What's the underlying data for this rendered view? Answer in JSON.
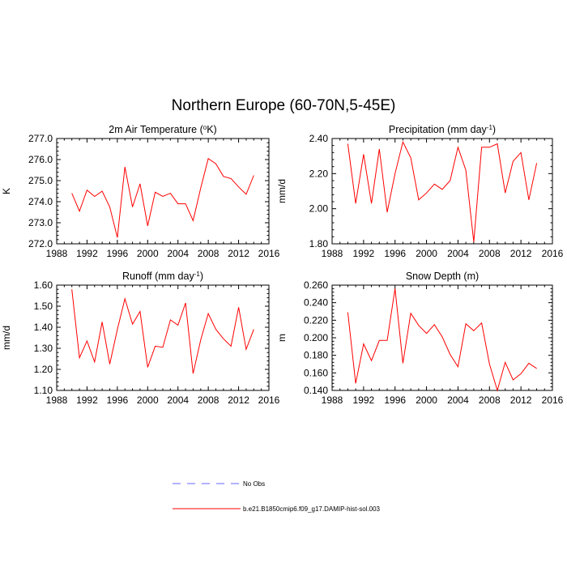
{
  "title": "Northern Europe (60-70N,5-45E)",
  "colors": {
    "model": "#ff0000",
    "obs": "#6666ff",
    "axis": "#000000"
  },
  "legend": {
    "obs_label": "No Obs",
    "model_label": "b.e21.B1850cmip6.f09_g17.DAMIP-hist-sol.003"
  },
  "chart_data": [
    {
      "type": "line",
      "title": "2m Air Temperature (°K)",
      "title_text": "2m Air Temperature (",
      "title_sup": "o",
      "title_after": "K)",
      "ylabel": "K",
      "xlim": [
        1988,
        2016
      ],
      "ylim": [
        272.0,
        277.0
      ],
      "xticks": [
        1988,
        1992,
        1996,
        2000,
        2004,
        2008,
        2012,
        2016
      ],
      "yticks": [
        "272.0",
        "273.0",
        "274.0",
        "275.0",
        "276.0",
        "277.0"
      ],
      "x": [
        1990,
        1991,
        1992,
        1993,
        1994,
        1995,
        1996,
        1997,
        1998,
        1999,
        2000,
        2001,
        2002,
        2003,
        2004,
        2005,
        2006,
        2007,
        2008,
        2009,
        2010,
        2011,
        2012,
        2013,
        2014
      ],
      "series": [
        {
          "name": "b.e21.B1850cmip6.f09_g17.DAMIP-hist-sol.003",
          "values": [
            274.4,
            273.55,
            274.55,
            274.25,
            274.5,
            273.75,
            272.3,
            275.65,
            273.75,
            274.85,
            272.85,
            274.45,
            274.25,
            274.4,
            273.9,
            273.9,
            273.1,
            274.65,
            276.05,
            275.8,
            275.2,
            275.1,
            274.7,
            274.35,
            275.25
          ]
        }
      ]
    },
    {
      "type": "line",
      "title": "Precipitation (mm day-1)",
      "title_text": "Precipitation (mm day",
      "title_sup": "-1",
      "title_after": ")",
      "ylabel": "mm/d",
      "xlim": [
        1988,
        2016
      ],
      "ylim": [
        1.8,
        2.4
      ],
      "xticks": [
        1988,
        1992,
        1996,
        2000,
        2004,
        2008,
        2012,
        2016
      ],
      "yticks": [
        "1.80",
        "2.00",
        "2.20",
        "2.40"
      ],
      "x": [
        1990,
        1991,
        1992,
        1993,
        1994,
        1995,
        1996,
        1997,
        1998,
        1999,
        2000,
        2001,
        2002,
        2003,
        2004,
        2005,
        2006,
        2007,
        2008,
        2009,
        2010,
        2011,
        2012,
        2013,
        2014
      ],
      "series": [
        {
          "name": "b.e21.B1850cmip6.f09_g17.DAMIP-hist-sol.003",
          "values": [
            2.37,
            2.03,
            2.31,
            2.03,
            2.34,
            1.98,
            2.2,
            2.38,
            2.29,
            2.05,
            2.09,
            2.14,
            2.11,
            2.16,
            2.35,
            2.22,
            1.81,
            2.35,
            2.35,
            2.37,
            2.09,
            2.27,
            2.32,
            2.05,
            2.26
          ]
        }
      ]
    },
    {
      "type": "line",
      "title": "Runoff (mm day-1)",
      "title_text": "Runoff (mm day",
      "title_sup": "-1",
      "title_after": ")",
      "ylabel": "mm/d",
      "xlim": [
        1988,
        2016
      ],
      "ylim": [
        1.1,
        1.6
      ],
      "xticks": [
        1988,
        1992,
        1996,
        2000,
        2004,
        2008,
        2012,
        2016
      ],
      "yticks": [
        "1.10",
        "1.20",
        "1.30",
        "1.40",
        "1.50",
        "1.60"
      ],
      "x": [
        1990,
        1991,
        1992,
        1993,
        1994,
        1995,
        1996,
        1997,
        1998,
        1999,
        2000,
        2001,
        2002,
        2003,
        2004,
        2005,
        2006,
        2007,
        2008,
        2009,
        2010,
        2011,
        2012,
        2013,
        2014
      ],
      "series": [
        {
          "name": "b.e21.B1850cmip6.f09_g17.DAMIP-hist-sol.003",
          "values": [
            1.58,
            1.255,
            1.335,
            1.235,
            1.425,
            1.225,
            1.39,
            1.535,
            1.415,
            1.475,
            1.21,
            1.31,
            1.305,
            1.435,
            1.41,
            1.515,
            1.18,
            1.34,
            1.465,
            1.39,
            1.345,
            1.31,
            1.495,
            1.295,
            1.39
          ]
        }
      ]
    },
    {
      "type": "line",
      "title": "Snow Depth (m)",
      "title_text": "Snow Depth (m)",
      "title_sup": "",
      "title_after": "",
      "ylabel": "m",
      "xlim": [
        1988,
        2016
      ],
      "ylim": [
        0.14,
        0.26
      ],
      "xticks": [
        1988,
        1992,
        1996,
        2000,
        2004,
        2008,
        2012,
        2016
      ],
      "yticks": [
        "0.140",
        "0.160",
        "0.180",
        "0.200",
        "0.220",
        "0.240",
        "0.260"
      ],
      "x": [
        1990,
        1991,
        1992,
        1993,
        1994,
        1995,
        1996,
        1997,
        1998,
        1999,
        2000,
        2001,
        2002,
        2003,
        2004,
        2005,
        2006,
        2007,
        2008,
        2009,
        2010,
        2011,
        2012,
        2013,
        2014
      ],
      "series": [
        {
          "name": "b.e21.B1850cmip6.f09_g17.DAMIP-hist-sol.003",
          "values": [
            0.229,
            0.148,
            0.193,
            0.174,
            0.197,
            0.197,
            0.256,
            0.171,
            0.228,
            0.214,
            0.205,
            0.215,
            0.201,
            0.181,
            0.167,
            0.216,
            0.208,
            0.217,
            0.17,
            0.14,
            0.172,
            0.152,
            0.159,
            0.171,
            0.165
          ]
        }
      ]
    }
  ]
}
